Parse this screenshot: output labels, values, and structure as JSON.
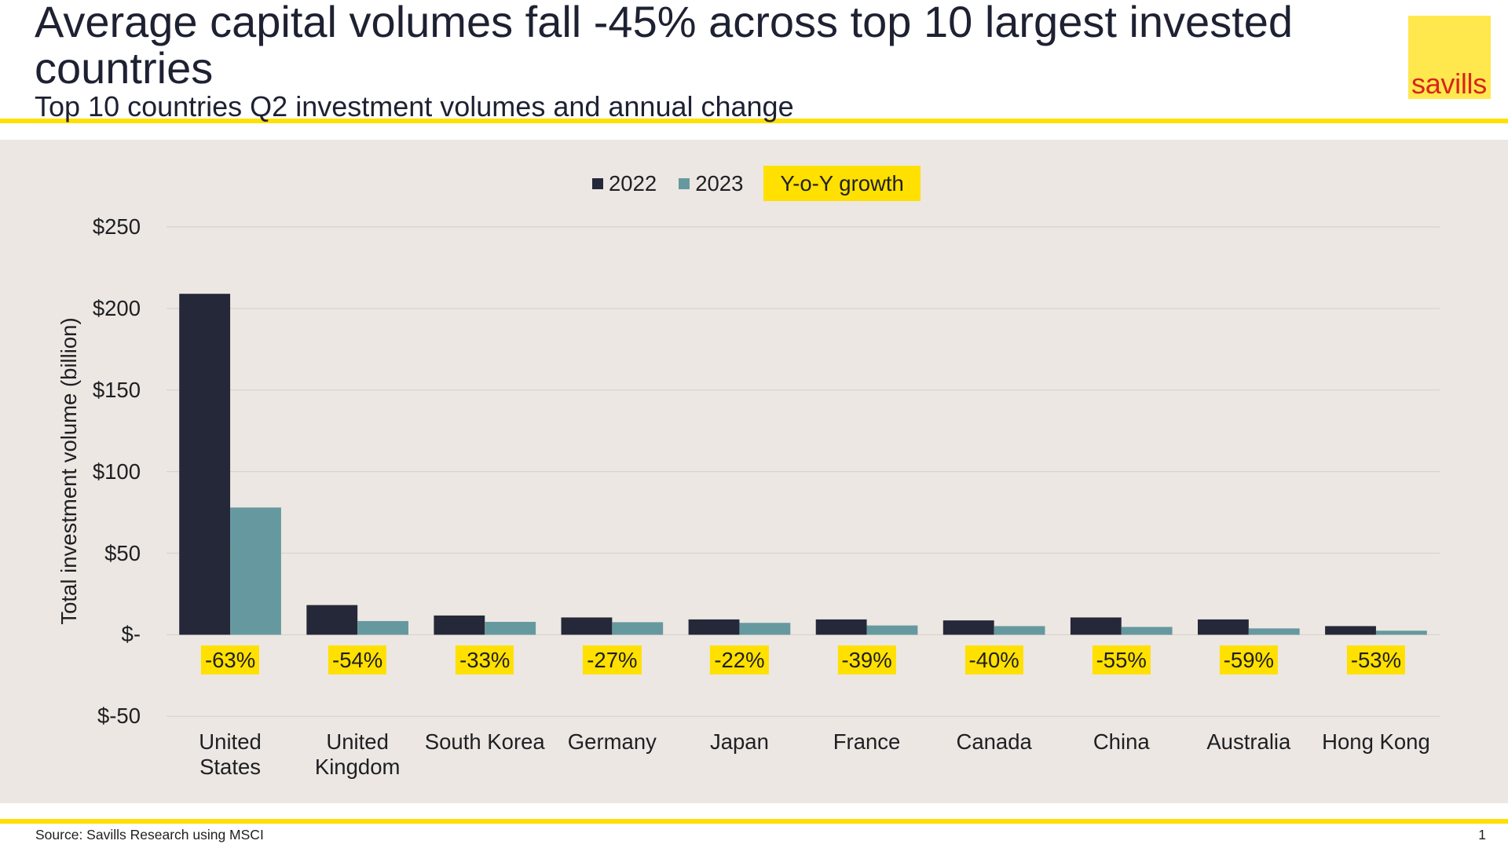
{
  "slide": {
    "title": "Average capital volumes fall -45% across top 10 largest invested countries",
    "subtitle": "Top 10 countries Q2 investment volumes and annual change",
    "source": "Source: Savills Research using MSCI",
    "page_number": "1",
    "logo_text": "savills"
  },
  "colors": {
    "accent_yellow": "#ffe000",
    "logo_yellow": "#ffe84d",
    "logo_red": "#d9241c",
    "panel_bg": "#ece7e2",
    "title_text": "#1e2132",
    "body_text": "#1f1f23"
  },
  "chart_data": {
    "type": "bar",
    "title": "",
    "xlabel": "",
    "ylabel": "Total investment volume (billion)",
    "ylim": [
      -50,
      250
    ],
    "grid": true,
    "legend": "top-center",
    "y_ticks": [
      {
        "value": 250,
        "label": "$250"
      },
      {
        "value": 200,
        "label": "$200"
      },
      {
        "value": 150,
        "label": "$150"
      },
      {
        "value": 100,
        "label": "$100"
      },
      {
        "value": 50,
        "label": "$50"
      },
      {
        "value": 0,
        "label": "$-"
      },
      {
        "value": -50,
        "label": "$-50"
      }
    ],
    "categories": [
      "United States",
      "United Kingdom",
      "South Korea",
      "Germany",
      "Japan",
      "France",
      "Canada",
      "China",
      "Australia",
      "Hong Kong"
    ],
    "series": [
      {
        "name": "2022",
        "color": "#252839",
        "values": [
          209,
          18.2,
          11.8,
          10.6,
          9.4,
          9.4,
          8.8,
          10.6,
          9.4,
          5.3
        ]
      },
      {
        "name": "2023",
        "color": "#66999f",
        "values": [
          78,
          8.4,
          7.9,
          7.7,
          7.3,
          5.7,
          5.3,
          4.8,
          3.9,
          2.5
        ]
      }
    ],
    "growth_legend_label": "Y-o-Y growth",
    "yoy_growth": [
      "-63%",
      "-54%",
      "-33%",
      "-27%",
      "-22%",
      "-39%",
      "-40%",
      "-55%",
      "-59%",
      "-53%"
    ]
  }
}
